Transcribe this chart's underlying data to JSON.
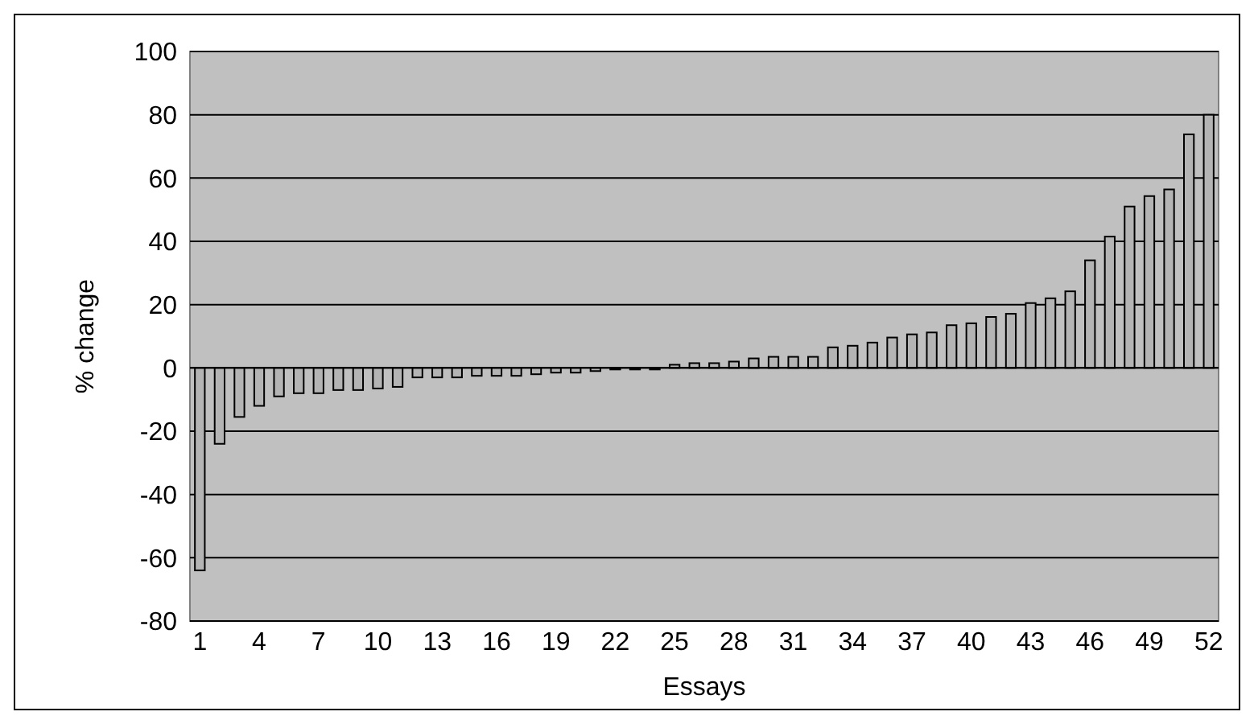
{
  "chart_data": {
    "type": "bar",
    "xlabel": "Essays",
    "ylabel": "% change",
    "categories": [
      "1",
      null,
      null,
      "4",
      null,
      null,
      "7",
      null,
      null,
      "10",
      null,
      null,
      "13",
      null,
      null,
      "16",
      null,
      null,
      "19",
      null,
      null,
      "22",
      null,
      null,
      "25",
      null,
      null,
      "28",
      null,
      null,
      "31",
      null,
      null,
      "34",
      null,
      null,
      "37",
      null,
      null,
      "40",
      null,
      null,
      "43",
      null,
      null,
      "46",
      null,
      null,
      "49",
      null,
      null,
      "52"
    ],
    "values": [
      -64,
      -24,
      -15.5,
      -12,
      -9,
      -8,
      -8,
      -7,
      -7,
      -6.5,
      -6,
      -3,
      -3,
      -3,
      -2.5,
      -2.5,
      -2.5,
      -2,
      -1.5,
      -1.5,
      -1,
      -0.5,
      -0.5,
      -0.5,
      1,
      1.5,
      1.5,
      2,
      3,
      3.5,
      3.5,
      3.5,
      6.5,
      7,
      8,
      9.6,
      10.6,
      11.2,
      13.5,
      14.1,
      16.1,
      17.1,
      20.5,
      22,
      24.2,
      34,
      41.5,
      51,
      54.3,
      56.4,
      73.8,
      80
    ],
    "color": "#b4b4b4",
    "ylim": [
      -80,
      100
    ],
    "yticks": [
      -80,
      -60,
      -40,
      -20,
      0,
      20,
      40,
      60,
      80,
      100
    ],
    "grid": "y"
  }
}
